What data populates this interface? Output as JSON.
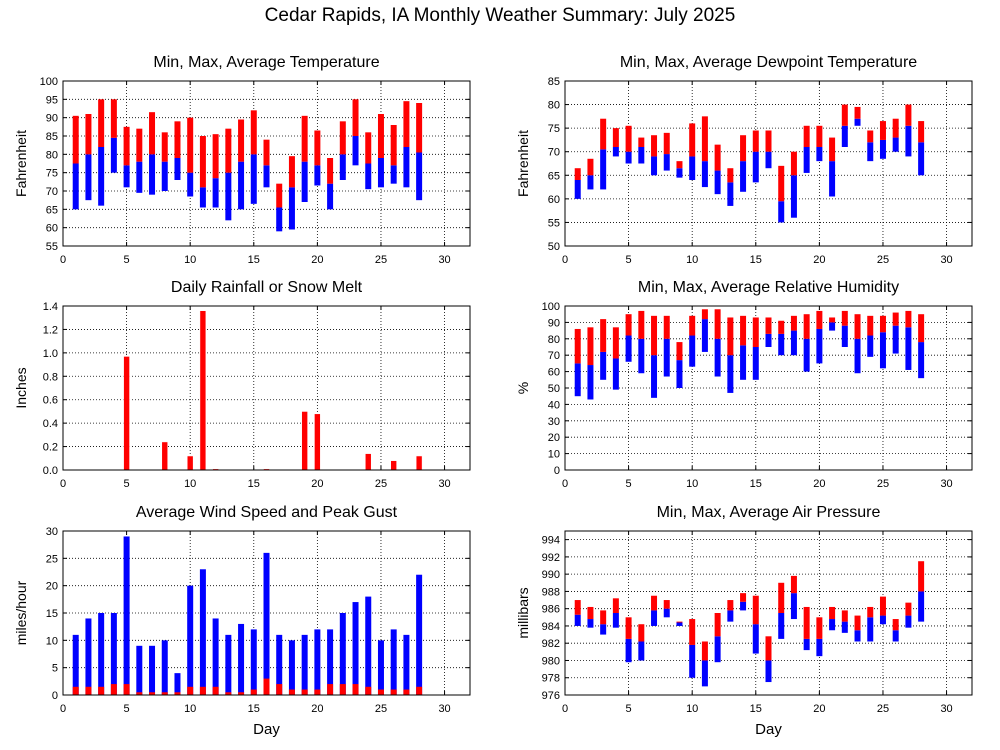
{
  "page": {
    "title": "Cedar Rapids, IA Monthly Weather Summary: July 2025"
  },
  "colors": {
    "min_to_avg": "#0000ff",
    "avg_to_max": "#ff0000",
    "gust": "#0000ff",
    "avg_wind": "#ff0000",
    "grid": "#000000"
  },
  "chart_data": [
    {
      "id": "temp",
      "type": "bar",
      "style": "floating-range",
      "title": "Min, Max, Average Temperature",
      "ylabel": "Fahrenheit",
      "xlabel": "",
      "xlim": [
        0,
        32
      ],
      "ylim": [
        55,
        100
      ],
      "xticks": [
        0,
        5,
        10,
        15,
        20,
        25,
        30
      ],
      "yticks": [
        55,
        60,
        65,
        70,
        75,
        80,
        85,
        90,
        95,
        100
      ],
      "grid": true,
      "x": [
        1,
        2,
        3,
        4,
        5,
        6,
        7,
        8,
        9,
        10,
        11,
        12,
        13,
        14,
        15,
        16,
        17,
        18,
        19,
        20,
        21,
        22,
        23,
        24,
        25,
        26,
        27,
        28
      ],
      "min": [
        65,
        67.5,
        66,
        75,
        71,
        69.5,
        69,
        70,
        73,
        68.5,
        65.5,
        65.5,
        62,
        65,
        66.5,
        71,
        59,
        59.5,
        67,
        71.5,
        65,
        73,
        77,
        70.5,
        71,
        72,
        71,
        67.5
      ],
      "avg": [
        77.5,
        80,
        82,
        84.5,
        77,
        78,
        80,
        78,
        79,
        75,
        71,
        73.5,
        75,
        78,
        80,
        77,
        65.5,
        71,
        78,
        77,
        72,
        80,
        85,
        77.5,
        79,
        77,
        82,
        80.5
      ],
      "max": [
        90.5,
        91,
        95,
        95,
        87.5,
        87,
        91.5,
        86,
        89,
        90,
        85,
        85.5,
        87,
        89.5,
        92,
        84,
        72,
        79.5,
        90.5,
        86.5,
        79,
        89,
        95,
        86,
        91,
        88,
        94.5,
        94
      ]
    },
    {
      "id": "dewpoint",
      "type": "bar",
      "style": "floating-range",
      "title": "Min, Max, Average Dewpoint Temperature",
      "ylabel": "Fahrenheit",
      "xlabel": "",
      "xlim": [
        0,
        32
      ],
      "ylim": [
        50,
        85
      ],
      "xticks": [
        0,
        5,
        10,
        15,
        20,
        25,
        30
      ],
      "yticks": [
        50,
        55,
        60,
        65,
        70,
        75,
        80,
        85
      ],
      "grid": true,
      "x": [
        1,
        2,
        3,
        4,
        5,
        6,
        7,
        8,
        9,
        10,
        11,
        12,
        13,
        14,
        15,
        16,
        17,
        18,
        19,
        20,
        21,
        22,
        23,
        24,
        25,
        26,
        27,
        28
      ],
      "min": [
        60,
        62,
        62,
        69,
        67.5,
        67.5,
        65,
        66,
        64.5,
        64,
        62.5,
        61,
        58.5,
        61.5,
        63.5,
        66.5,
        55,
        56,
        65.5,
        68,
        60.5,
        71,
        75.5,
        68,
        68.5,
        70,
        69,
        65
      ],
      "avg": [
        64,
        65,
        70.5,
        71,
        70,
        71,
        69,
        69.5,
        66.5,
        69,
        68,
        66,
        63.5,
        68,
        70,
        70,
        59.5,
        65,
        71,
        71,
        68,
        75.5,
        77,
        72,
        72.5,
        73,
        75.5,
        72
      ],
      "max": [
        66.5,
        68.5,
        77,
        75,
        75.5,
        73,
        73.5,
        74,
        68,
        76,
        77.5,
        71.5,
        66.5,
        73.5,
        74.5,
        74.5,
        67,
        70,
        75.5,
        75.5,
        73,
        80,
        79.5,
        74.5,
        76.5,
        77,
        80,
        76.5
      ]
    },
    {
      "id": "rain",
      "type": "bar",
      "title": "Daily Rainfall or Snow Melt",
      "ylabel": "Inches",
      "xlabel": "",
      "xlim": [
        0,
        32
      ],
      "ylim": [
        0,
        1.4
      ],
      "xticks": [
        0,
        5,
        10,
        15,
        20,
        25,
        30
      ],
      "yticks": [
        0,
        0.2,
        0.4,
        0.6,
        0.8,
        1.0,
        1.2,
        1.4
      ],
      "ytick_labels": [
        "0.0",
        "0.2",
        "0.4",
        "0.6",
        "0.8",
        "1.0",
        "1.2",
        "1.4"
      ],
      "grid": true,
      "x": [
        1,
        2,
        3,
        4,
        5,
        6,
        7,
        8,
        9,
        10,
        11,
        12,
        13,
        14,
        15,
        16,
        17,
        18,
        19,
        20,
        21,
        22,
        23,
        24,
        25,
        26,
        27,
        28
      ],
      "values": [
        0,
        0,
        0,
        0,
        0.97,
        0,
        0,
        0.24,
        0,
        0.12,
        1.36,
        0.01,
        0,
        0,
        0,
        0.01,
        0,
        0,
        0.5,
        0.48,
        0,
        0,
        0,
        0.14,
        0,
        0.08,
        0,
        0.12
      ]
    },
    {
      "id": "humidity",
      "type": "bar",
      "style": "floating-range",
      "title": "Min, Max, Average Relative Humidity",
      "ylabel": "%",
      "xlabel": "",
      "xlim": [
        0,
        32
      ],
      "ylim": [
        0,
        100
      ],
      "xticks": [
        0,
        5,
        10,
        15,
        20,
        25,
        30
      ],
      "yticks": [
        0,
        10,
        20,
        30,
        40,
        50,
        60,
        70,
        80,
        90,
        100
      ],
      "grid": true,
      "x": [
        1,
        2,
        3,
        4,
        5,
        6,
        7,
        8,
        9,
        10,
        11,
        12,
        13,
        14,
        15,
        16,
        17,
        18,
        19,
        20,
        21,
        22,
        23,
        24,
        25,
        26,
        27,
        28
      ],
      "min": [
        45,
        43,
        55,
        49,
        66,
        59,
        44,
        57,
        50,
        63,
        72,
        57,
        47,
        55,
        55,
        75,
        70,
        70,
        60,
        65,
        85,
        75,
        59,
        69,
        62,
        71,
        61,
        56
      ],
      "avg": [
        65,
        64,
        72,
        68,
        82,
        80,
        70,
        80,
        67,
        82,
        92,
        80,
        70,
        76,
        75,
        83,
        83,
        85,
        80,
        86,
        90,
        88,
        80,
        82,
        84,
        88,
        87,
        78
      ],
      "max": [
        86,
        87,
        92,
        87,
        95,
        97,
        94,
        94,
        78,
        94,
        98,
        98,
        93,
        94,
        93,
        93,
        91,
        94,
        95,
        97,
        93,
        97,
        95,
        94,
        94,
        96,
        97,
        95
      ]
    },
    {
      "id": "wind",
      "type": "bar",
      "title": "Average Wind Speed and Peak Gust",
      "ylabel": "miles/hour",
      "xlabel": "Day",
      "xlim": [
        0,
        32
      ],
      "ylim": [
        0,
        30
      ],
      "xticks": [
        0,
        5,
        10,
        15,
        20,
        25,
        30
      ],
      "yticks": [
        0,
        5,
        10,
        15,
        20,
        25,
        30
      ],
      "grid": true,
      "x": [
        1,
        2,
        3,
        4,
        5,
        6,
        7,
        8,
        9,
        10,
        11,
        12,
        13,
        14,
        15,
        16,
        17,
        18,
        19,
        20,
        21,
        22,
        23,
        24,
        25,
        26,
        27,
        28
      ],
      "series": [
        {
          "values": [
            11,
            14,
            15,
            15,
            29,
            9,
            9,
            10,
            4,
            20,
            23,
            14,
            11,
            13,
            12,
            26,
            11,
            10,
            11,
            12,
            12,
            15,
            17,
            18,
            10,
            12,
            11,
            22
          ]
        },
        {
          "values": [
            1.5,
            1.5,
            1.5,
            2,
            2,
            0.5,
            0.5,
            0.5,
            0.5,
            1.5,
            1.5,
            1.5,
            0.5,
            0.5,
            1,
            3,
            2,
            1,
            1,
            1,
            2,
            2,
            2,
            1.5,
            1,
            1,
            1,
            1.5
          ]
        }
      ]
    },
    {
      "id": "pressure",
      "type": "bar",
      "style": "floating-range",
      "title": "Min, Max, Average Air Pressure",
      "ylabel": "millibars",
      "xlabel": "Day",
      "xlim": [
        0,
        32
      ],
      "ylim": [
        976,
        995
      ],
      "xticks": [
        0,
        5,
        10,
        15,
        20,
        25,
        30
      ],
      "yticks": [
        976,
        978,
        980,
        982,
        984,
        986,
        988,
        990,
        992,
        994
      ],
      "grid": true,
      "x": [
        1,
        2,
        3,
        4,
        5,
        6,
        7,
        8,
        9,
        10,
        11,
        12,
        13,
        14,
        15,
        16,
        17,
        18,
        19,
        20,
        21,
        22,
        23,
        24,
        25,
        26,
        27,
        28
      ],
      "min": [
        984,
        983.8,
        983,
        983.8,
        979.8,
        980,
        984,
        985,
        984,
        978,
        977,
        979.8,
        984.5,
        985.8,
        980.8,
        977.5,
        982.5,
        984.8,
        981.2,
        980.5,
        983.5,
        983.2,
        982.2,
        982.2,
        984.2,
        982.2,
        983.8,
        984.5
      ],
      "avg": [
        985.3,
        984.8,
        984.2,
        985.5,
        982.5,
        982.2,
        985.8,
        986,
        984.4,
        981.8,
        980,
        982.8,
        985.8,
        986.8,
        984.2,
        980,
        985.5,
        987.8,
        982.5,
        982.5,
        984.8,
        984.5,
        983.5,
        985,
        985.2,
        983.5,
        985.2,
        988
      ],
      "max": [
        987,
        986.2,
        985.8,
        987.2,
        985,
        984.2,
        987.5,
        987,
        984.5,
        984.8,
        982.2,
        985.5,
        987,
        987.8,
        987.5,
        982.8,
        989,
        989.8,
        986.2,
        985,
        986.2,
        985.8,
        985.2,
        986.2,
        987.4,
        984.8,
        986.7,
        991.5
      ]
    }
  ]
}
